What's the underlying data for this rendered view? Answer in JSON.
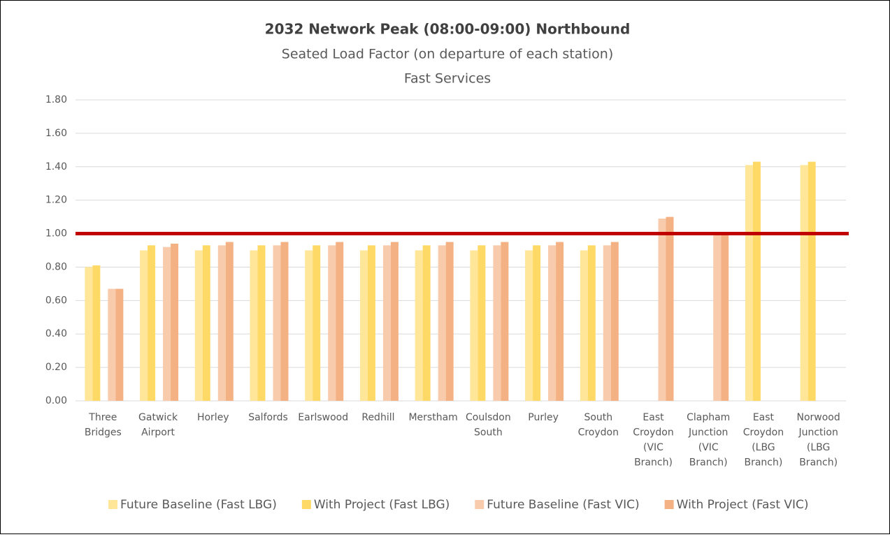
{
  "chart_data": {
    "type": "bar",
    "title": "2032 Network Peak (08:00-09:00) Northbound",
    "subtitle": [
      "Seated Load Factor (on departure of each station)",
      "Fast Services"
    ],
    "categories": [
      [
        "Three",
        "Bridges"
      ],
      [
        "Gatwick",
        "Airport"
      ],
      [
        "Horley"
      ],
      [
        "Salfords"
      ],
      [
        "Earlswood"
      ],
      [
        "Redhill"
      ],
      [
        "Merstham"
      ],
      [
        "Coulsdon",
        "South"
      ],
      [
        "Purley"
      ],
      [
        "South",
        "Croydon"
      ],
      [
        "East",
        "Croydon",
        "(VIC",
        "Branch)"
      ],
      [
        "Clapham",
        "Junction",
        "(VIC",
        "Branch)"
      ],
      [
        "East",
        "Croydon",
        "(LBG",
        "Branch)"
      ],
      [
        "Norwood",
        "Junction",
        "(LBG",
        "Branch)"
      ]
    ],
    "series": [
      {
        "name": "Future Baseline (Fast LBG)",
        "color": "#FFE699",
        "values": [
          0.8,
          0.9,
          0.9,
          0.9,
          0.9,
          0.9,
          0.9,
          0.9,
          0.9,
          0.9,
          null,
          null,
          1.41,
          1.41
        ]
      },
      {
        "name": "With Project (Fast LBG)",
        "color": "#FFD966",
        "values": [
          0.81,
          0.93,
          0.93,
          0.93,
          0.93,
          0.93,
          0.93,
          0.93,
          0.93,
          0.93,
          null,
          null,
          1.43,
          1.43
        ]
      },
      {
        "name": "Future Baseline (Fast VIC)",
        "color": "#F8CBAD",
        "values": [
          0.67,
          0.92,
          0.93,
          0.93,
          0.93,
          0.93,
          0.93,
          0.93,
          0.93,
          0.93,
          1.09,
          1.0,
          null,
          null
        ]
      },
      {
        "name": "With Project (Fast VIC)",
        "color": "#F4B183",
        "values": [
          0.67,
          0.94,
          0.95,
          0.95,
          0.95,
          0.95,
          0.95,
          0.95,
          0.95,
          0.95,
          1.1,
          1.0,
          null,
          null
        ]
      }
    ],
    "reference_line": {
      "value": 1.0,
      "color": "#C00000"
    },
    "ylim": [
      0,
      1.8
    ],
    "yticks": [
      {
        "value": 0,
        "label": "0.00"
      },
      {
        "value": 0.2,
        "label": "0.20"
      },
      {
        "value": 0.4,
        "label": "0.40"
      },
      {
        "value": 0.6,
        "label": "0.60"
      },
      {
        "value": 0.8,
        "label": "0.80"
      },
      {
        "value": 1.0,
        "label": "1.00"
      },
      {
        "value": 1.2,
        "label": "1.20"
      },
      {
        "value": 1.4,
        "label": "1.40"
      },
      {
        "value": 1.6,
        "label": "1.60"
      },
      {
        "value": 1.8,
        "label": "1.80"
      }
    ],
    "grid": true,
    "legend": "bottom"
  }
}
